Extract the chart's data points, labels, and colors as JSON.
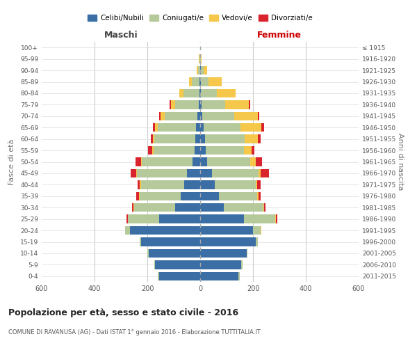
{
  "age_groups": [
    "0-4",
    "5-9",
    "10-14",
    "15-19",
    "20-24",
    "25-29",
    "30-34",
    "35-39",
    "40-44",
    "45-49",
    "50-54",
    "55-59",
    "60-64",
    "65-69",
    "70-74",
    "75-79",
    "80-84",
    "85-89",
    "90-94",
    "95-99",
    "100+"
  ],
  "birth_years": [
    "2011-2015",
    "2006-2010",
    "2001-2005",
    "1996-2000",
    "1991-1995",
    "1986-1990",
    "1981-1985",
    "1976-1980",
    "1971-1975",
    "1966-1970",
    "1961-1965",
    "1956-1960",
    "1951-1955",
    "1946-1950",
    "1941-1945",
    "1936-1940",
    "1931-1935",
    "1926-1930",
    "1921-1925",
    "1916-1920",
    "≤ 1915"
  ],
  "male": {
    "celibi": [
      155,
      170,
      195,
      225,
      265,
      155,
      95,
      75,
      60,
      50,
      30,
      22,
      18,
      15,
      10,
      5,
      3,
      2,
      0,
      0,
      0
    ],
    "coniugati": [
      5,
      5,
      5,
      5,
      20,
      120,
      155,
      155,
      165,
      190,
      190,
      155,
      155,
      145,
      125,
      90,
      60,
      30,
      8,
      2,
      0
    ],
    "vedovi": [
      0,
      0,
      0,
      0,
      0,
      0,
      2,
      2,
      3,
      3,
      5,
      5,
      5,
      10,
      15,
      15,
      15,
      10,
      5,
      2,
      0
    ],
    "divorziati": [
      0,
      0,
      0,
      0,
      0,
      5,
      5,
      10,
      10,
      20,
      20,
      15,
      10,
      10,
      5,
      5,
      0,
      0,
      0,
      0,
      0
    ]
  },
  "female": {
    "nubili": [
      145,
      155,
      175,
      210,
      200,
      165,
      90,
      70,
      55,
      45,
      25,
      20,
      18,
      12,
      8,
      5,
      3,
      2,
      2,
      0,
      0
    ],
    "coniugate": [
      5,
      5,
      5,
      8,
      30,
      120,
      150,
      145,
      155,
      175,
      165,
      145,
      150,
      140,
      120,
      90,
      60,
      30,
      10,
      3,
      0
    ],
    "vedove": [
      0,
      0,
      0,
      0,
      2,
      2,
      2,
      5,
      5,
      10,
      20,
      30,
      50,
      80,
      90,
      90,
      70,
      50,
      15,
      3,
      0
    ],
    "divorziate": [
      0,
      0,
      0,
      0,
      0,
      5,
      5,
      10,
      15,
      30,
      25,
      10,
      10,
      10,
      5,
      5,
      0,
      0,
      0,
      0,
      0
    ]
  },
  "colors": {
    "celibi": "#3a6ea5",
    "coniugati": "#b5c99a",
    "vedovi": "#f5c84c",
    "divorziati": "#d9232d"
  },
  "title": "Popolazione per età, sesso e stato civile - 2016",
  "subtitle": "COMUNE DI RAVANUSA (AG) - Dati ISTAT 1° gennaio 2016 - Elaborazione TUTTITALIA.IT",
  "ylabel_left": "Fasce di età",
  "ylabel_right": "Anni di nascita",
  "xlabel_left": "Maschi",
  "xlabel_right": "Femmine",
  "xlim": 600,
  "bg_color": "#ffffff",
  "grid_color": "#cccccc"
}
